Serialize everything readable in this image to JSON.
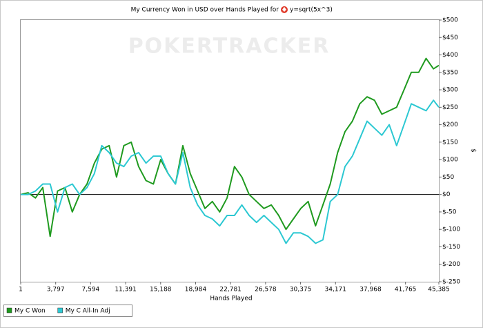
{
  "chart_data": {
    "type": "line",
    "title": "My Currency Won in USD over Hands Played for",
    "player": "y=sqrt(5x^3)",
    "watermark": "POKERTRACKER",
    "x_label": "Hands Played",
    "y_label": "$",
    "xlim": [
      1,
      45385
    ],
    "xticks": [
      1,
      {
        "value": 3797,
        "label": "3,797"
      },
      {
        "value": 7594,
        "label": "7,594"
      },
      {
        "value": 11391,
        "label": "11,391"
      },
      {
        "value": 15188,
        "label": "15,188"
      },
      {
        "value": 18984,
        "label": "18,984"
      },
      {
        "value": 22781,
        "label": "22,781"
      },
      {
        "value": 26578,
        "label": "26,578"
      },
      {
        "value": 30375,
        "label": "30,375"
      },
      {
        "value": 34171,
        "label": "34,171"
      },
      {
        "value": 37968,
        "label": "37,968"
      },
      {
        "value": 41765,
        "label": "41,765"
      },
      {
        "value": 45385,
        "label": "45,385"
      }
    ],
    "ylim": [
      -250,
      500
    ],
    "yticks": [
      {
        "value": -250,
        "label": "$-250"
      },
      {
        "value": -200,
        "label": "$-200"
      },
      {
        "value": -150,
        "label": "$-150"
      },
      {
        "value": -100,
        "label": "$-100"
      },
      {
        "value": -50,
        "label": "$-50"
      },
      {
        "value": 0,
        "label": "$0"
      },
      {
        "value": 50,
        "label": "$50"
      },
      {
        "value": 100,
        "label": "$100"
      },
      {
        "value": 150,
        "label": "$150"
      },
      {
        "value": 200,
        "label": "$200"
      },
      {
        "value": 250,
        "label": "$250"
      },
      {
        "value": 300,
        "label": "$300"
      },
      {
        "value": 350,
        "label": "$350"
      },
      {
        "value": 400,
        "label": "$400"
      },
      {
        "value": 450,
        "label": "$450"
      },
      {
        "value": 500,
        "label": "$500"
      }
    ],
    "grid": false,
    "legend": "bottom-left",
    "x": [
      1,
      800,
      1600,
      2400,
      3200,
      4000,
      4800,
      5600,
      6400,
      7200,
      8000,
      8800,
      9600,
      10400,
      11200,
      12000,
      12800,
      13600,
      14400,
      15200,
      16000,
      16800,
      17600,
      18400,
      19200,
      20000,
      20800,
      21600,
      22400,
      23200,
      24000,
      24800,
      25600,
      26400,
      27200,
      28000,
      28800,
      29600,
      30400,
      31200,
      32000,
      32800,
      33600,
      34400,
      35200,
      36000,
      36800,
      37600,
      38400,
      39200,
      40000,
      40800,
      41600,
      42400,
      43200,
      44000,
      44800,
      45385
    ],
    "series": [
      {
        "name": "My C Won",
        "color": "#1f9a1f",
        "values": [
          0,
          5,
          -10,
          20,
          -120,
          10,
          20,
          -50,
          0,
          30,
          90,
          130,
          140,
          50,
          140,
          150,
          80,
          40,
          30,
          100,
          60,
          30,
          140,
          60,
          10,
          -40,
          -20,
          -50,
          -10,
          80,
          50,
          0,
          -20,
          -40,
          -30,
          -60,
          -100,
          -70,
          -40,
          -20,
          -90,
          -30,
          30,
          120,
          180,
          210,
          260,
          280,
          270,
          230,
          240,
          250,
          300,
          350,
          350,
          390,
          360,
          370
        ]
      },
      {
        "name": "My C All-In Adj",
        "color": "#2cc8d2",
        "values": [
          0,
          0,
          10,
          30,
          30,
          -50,
          20,
          30,
          0,
          20,
          60,
          140,
          120,
          90,
          80,
          110,
          120,
          90,
          110,
          110,
          60,
          30,
          120,
          20,
          -30,
          -60,
          -70,
          -90,
          -60,
          -60,
          -30,
          -60,
          -80,
          -60,
          -80,
          -100,
          -140,
          -110,
          -110,
          -120,
          -140,
          -130,
          -20,
          0,
          80,
          110,
          160,
          210,
          190,
          170,
          200,
          140,
          200,
          260,
          250,
          240,
          270,
          250
        ]
      }
    ]
  }
}
